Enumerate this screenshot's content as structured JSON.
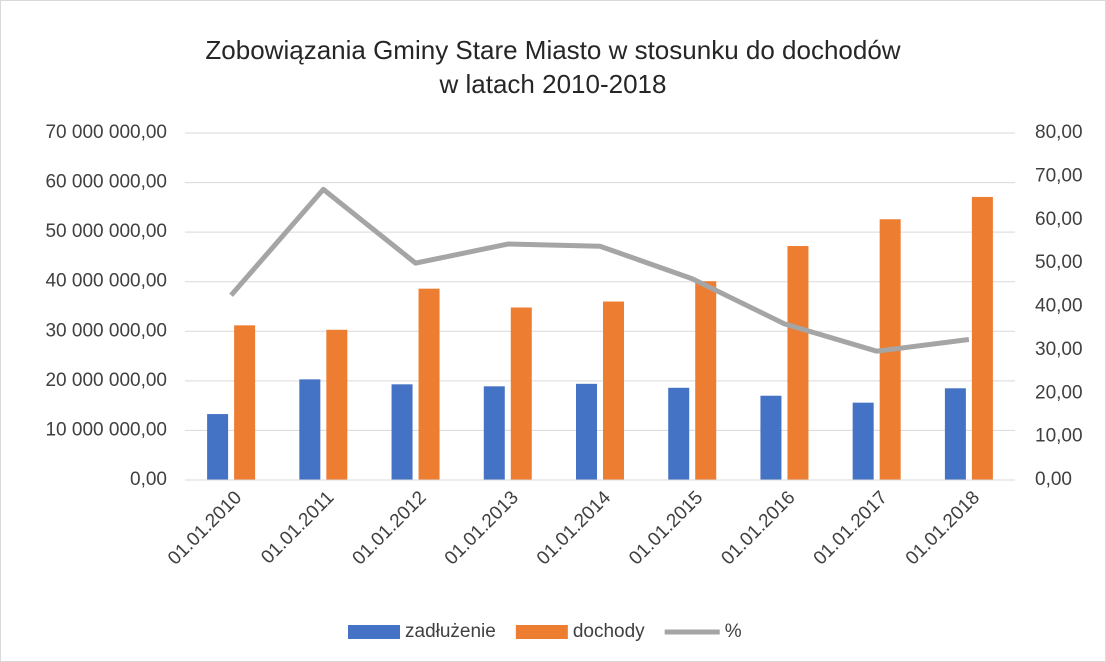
{
  "chart_data": {
    "type": "bar",
    "title": [
      "Zobowiązania Gminy Stare Miasto w stosunku do dochodów",
      "w latach 2010-2018"
    ],
    "categories": [
      "01.01.2010",
      "01.01.2011",
      "01.01.2012",
      "01.01.2013",
      "01.01.2014",
      "01.01.2015",
      "01.01.2016",
      "01.01.2017",
      "01.01.2018"
    ],
    "series": [
      {
        "name": "zadłużenie",
        "type": "bar",
        "color": "#4472c4",
        "values": [
          13300000,
          20300000,
          19300000,
          18900000,
          19400000,
          18600000,
          17000000,
          15600000,
          18500000
        ]
      },
      {
        "name": "dochody",
        "type": "bar",
        "color": "#ed7d31",
        "values": [
          31200000,
          30300000,
          38600000,
          34800000,
          36000000,
          40100000,
          47200000,
          52600000,
          57100000
        ]
      },
      {
        "name": "%",
        "type": "line",
        "axis": "y2",
        "color": "#a5a5a5",
        "values": [
          42.6,
          67.0,
          50.0,
          54.4,
          53.9,
          46.4,
          36.0,
          29.7,
          32.4
        ]
      }
    ],
    "ylim": [
      0,
      70000000
    ],
    "yticks": [
      {
        "value": 0,
        "label": "0,00"
      },
      {
        "value": 10000000,
        "label": "10 000 000,00"
      },
      {
        "value": 20000000,
        "label": "20 000 000,00"
      },
      {
        "value": 30000000,
        "label": "30 000 000,00"
      },
      {
        "value": 40000000,
        "label": "40 000 000,00"
      },
      {
        "value": 50000000,
        "label": "50 000 000,00"
      },
      {
        "value": 60000000,
        "label": "60 000 000,00"
      },
      {
        "value": 70000000,
        "label": "70 000 000,00"
      }
    ],
    "y2lim": [
      0,
      80
    ],
    "y2ticks": [
      {
        "value": 0,
        "label": "0,00"
      },
      {
        "value": 10,
        "label": "10,00"
      },
      {
        "value": 20,
        "label": "20,00"
      },
      {
        "value": 30,
        "label": "30,00"
      },
      {
        "value": 40,
        "label": "40,00"
      },
      {
        "value": 50,
        "label": "50,00"
      },
      {
        "value": 60,
        "label": "60,00"
      },
      {
        "value": 70,
        "label": "70,00"
      },
      {
        "value": 80,
        "label": "80,00"
      }
    ],
    "grid": true,
    "legend": "bottom"
  }
}
